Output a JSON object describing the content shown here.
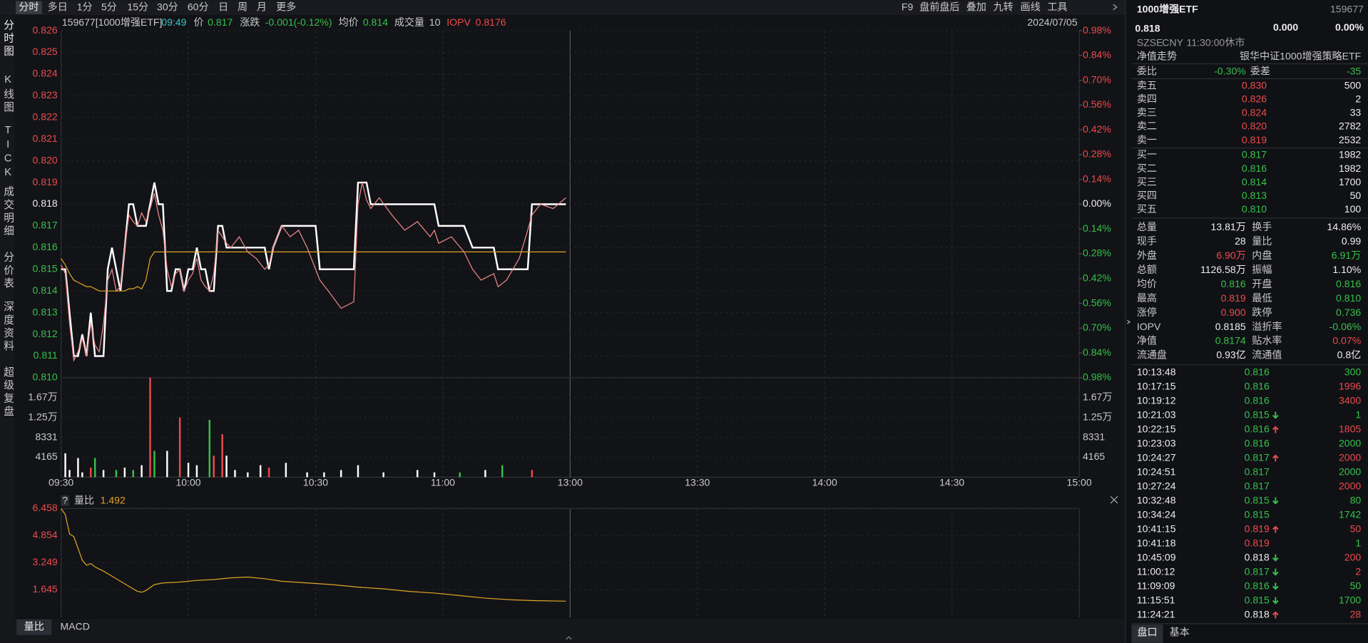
{
  "toolbar": {
    "tabs": [
      "分时",
      "多日",
      "1分",
      "5分",
      "15分",
      "30分",
      "60分",
      "日",
      "周",
      "月",
      "更多"
    ],
    "tools": [
      "F9",
      "盘前盘后",
      "叠加",
      "九转",
      "画线",
      "工具"
    ]
  },
  "sidebar": [
    "分时图",
    "K线图",
    "TICK",
    "成交明细",
    "分价表",
    "深度资料",
    "超级复盘"
  ],
  "info": {
    "code": "159677[1000增强ETF]",
    "time": "09:49",
    "price_label": "价",
    "price": 0.817,
    "change_label": "涨跌",
    "change": "-0.001(-0.12%)",
    "avg_label": "均价",
    "avg": 0.814,
    "vol_label": "成交量",
    "vol": 10,
    "iopv_label": "IOPV",
    "iopv": 0.8176,
    "date": "2024/07/05"
  },
  "chart_data": [
    {
      "type": "line",
      "x": [
        "09:30",
        "09:31",
        "09:32",
        "09:33",
        "09:34",
        "09:35",
        "09:36",
        "09:37",
        "09:38",
        "09:39",
        "09:40",
        "09:41",
        "09:42",
        "09:43",
        "09:44",
        "09:45",
        "09:46",
        "09:47",
        "09:48",
        "09:49",
        "09:50",
        "09:51",
        "09:52",
        "09:53",
        "09:54",
        "09:55",
        "09:56",
        "09:57",
        "09:58",
        "09:59",
        "10:00",
        "10:01",
        "10:02",
        "10:03",
        "10:04",
        "10:05",
        "10:06",
        "10:07",
        "10:08",
        "10:09",
        "10:10",
        "10:12",
        "10:14",
        "10:16",
        "10:18",
        "10:19",
        "10:20",
        "10:22",
        "10:24",
        "10:26",
        "10:28",
        "10:30",
        "10:31",
        "10:33",
        "10:36",
        "10:39",
        "10:40",
        "10:41",
        "10:42",
        "10:43",
        "10:45",
        "10:48",
        "10:51",
        "10:54",
        "10:57",
        "10:58",
        "10:59",
        "11:02",
        "11:05",
        "11:07",
        "11:09",
        "11:12",
        "11:13",
        "11:15",
        "11:18",
        "11:20",
        "11:21",
        "11:23",
        "11:26",
        "11:29"
      ],
      "series": [
        {
          "color": "#ffffff",
          "values": [
            0.815,
            0.815,
            0.813,
            0.811,
            0.811,
            0.812,
            0.811,
            0.813,
            0.811,
            0.811,
            0.811,
            0.815,
            0.816,
            0.815,
            0.814,
            0.816,
            0.818,
            0.818,
            0.817,
            0.817,
            0.817,
            0.818,
            0.819,
            0.818,
            0.818,
            0.814,
            0.814,
            0.815,
            0.815,
            0.814,
            0.815,
            0.815,
            0.816,
            0.815,
            0.815,
            0.814,
            0.814,
            0.817,
            0.817,
            0.816,
            0.816,
            0.816,
            0.816,
            0.816,
            0.816,
            0.815,
            0.816,
            0.817,
            0.817,
            0.817,
            0.817,
            0.817,
            0.815,
            0.815,
            0.815,
            0.815,
            0.819,
            0.819,
            0.819,
            0.818,
            0.818,
            0.818,
            0.818,
            0.818,
            0.818,
            0.818,
            0.817,
            0.817,
            0.817,
            0.816,
            0.816,
            0.816,
            0.815,
            0.815,
            0.815,
            0.815,
            0.818,
            0.818,
            0.818,
            0.818
          ]
        },
        {
          "color": "#f08a8a",
          "values": [
            0.8152,
            0.8148,
            0.8125,
            0.8108,
            0.8112,
            0.8118,
            0.811,
            0.8125,
            0.8115,
            0.8112,
            0.8125,
            0.8145,
            0.815,
            0.814,
            0.8142,
            0.816,
            0.8175,
            0.8172,
            0.817,
            0.8176,
            0.8172,
            0.8178,
            0.8185,
            0.8175,
            0.8168,
            0.815,
            0.8142,
            0.8148,
            0.815,
            0.814,
            0.8145,
            0.8148,
            0.8155,
            0.8145,
            0.8142,
            0.814,
            0.8148,
            0.8168,
            0.8165,
            0.8162,
            0.816,
            0.8165,
            0.8158,
            0.8155,
            0.815,
            0.8152,
            0.816,
            0.817,
            0.8165,
            0.8168,
            0.816,
            0.815,
            0.8145,
            0.814,
            0.8132,
            0.8135,
            0.818,
            0.819,
            0.8182,
            0.8178,
            0.8183,
            0.8175,
            0.8168,
            0.8172,
            0.8165,
            0.8168,
            0.8162,
            0.8165,
            0.8158,
            0.815,
            0.8145,
            0.8148,
            0.8142,
            0.8145,
            0.8155,
            0.8168,
            0.8175,
            0.818,
            0.8178,
            0.8183
          ]
        },
        {
          "color": "#e0a526",
          "values": [
            0.8155,
            0.8152,
            0.8148,
            0.8145,
            0.8144,
            0.8143,
            0.8142,
            0.8142,
            0.8141,
            0.814,
            0.814,
            0.814,
            0.814,
            0.814,
            0.814,
            0.814,
            0.8141,
            0.8141,
            0.8142,
            0.8141,
            0.8145,
            0.8155,
            0.8158,
            0.8158,
            0.8158,
            0.8158,
            0.8158,
            0.8158,
            0.8158,
            0.8158,
            0.8158,
            0.8158,
            0.8158,
            0.8158,
            0.8158,
            0.8158,
            0.8158,
            0.8158,
            0.8158,
            0.8158,
            0.8158,
            0.8158,
            0.8158,
            0.8158,
            0.8158,
            0.8158,
            0.8158,
            0.8158,
            0.8158,
            0.8158,
            0.8158,
            0.8158,
            0.8158,
            0.8158,
            0.8158,
            0.8158,
            0.8158,
            0.8158,
            0.8158,
            0.8158,
            0.8158,
            0.8158,
            0.8158,
            0.8158,
            0.8158,
            0.8158,
            0.8158,
            0.8158,
            0.8158,
            0.8158,
            0.8158,
            0.8158,
            0.8158,
            0.8158,
            0.8158,
            0.8158,
            0.8158,
            0.8158,
            0.8158,
            0.8158
          ]
        }
      ],
      "ylim": [
        0.81,
        0.826
      ],
      "yticks": [
        {
          "value": 0.81,
          "label": "0.810"
        },
        0.811,
        0.812,
        0.813,
        0.814,
        0.815,
        0.816,
        0.817,
        0.818,
        0.819,
        {
          "value": 0.82,
          "label": "0.820"
        },
        0.821,
        0.822,
        0.823,
        0.824,
        0.825,
        0.826
      ],
      "y2lim": [
        -0.98,
        0.98
      ],
      "y2ticks": [
        {
          "value": 0.98,
          "label": "0.98%"
        },
        {
          "value": 0.84,
          "label": "0.84%"
        },
        {
          "value": 0.7,
          "label": "0.70%"
        },
        {
          "value": 0.56,
          "label": "0.56%"
        },
        {
          "value": 0.42,
          "label": "0.42%"
        },
        {
          "value": 0.28,
          "label": "0.28%"
        },
        {
          "value": 0.14,
          "label": "0.14%"
        },
        {
          "value": 0,
          "label": "0.00%"
        },
        {
          "value": -0.14,
          "label": "0.14%"
        },
        {
          "value": -0.28,
          "label": "0.28%"
        },
        {
          "value": -0.42,
          "label": "0.42%"
        },
        {
          "value": -0.56,
          "label": "0.56%"
        },
        {
          "value": -0.7,
          "label": "0.70%"
        },
        {
          "value": -0.84,
          "label": "0.84%"
        },
        {
          "value": -0.98,
          "label": "0.98%"
        }
      ],
      "grid": true
    },
    {
      "type": "bar",
      "x": [
        "09:31",
        "09:32",
        "09:34",
        "09:35",
        "09:37",
        "09:38",
        "09:40",
        "09:43",
        "09:45",
        "09:47",
        "09:49",
        "09:51",
        "09:52",
        "09:55",
        "09:58",
        "10:00",
        "10:02",
        "10:05",
        "10:06",
        "10:08",
        "10:09",
        "10:11",
        "10:14",
        "10:17",
        "10:19",
        "10:23",
        "10:28",
        "10:32",
        "10:36",
        "10:40",
        "10:46",
        "10:54",
        "10:58",
        "11:04",
        "11:10",
        "11:14",
        "11:21"
      ],
      "values": [
        5000,
        1500,
        4000,
        1000,
        2000,
        4000,
        1500,
        1500,
        2000,
        1500,
        2500,
        20826,
        5500,
        5500,
        12500,
        3000,
        2500,
        12000,
        4500,
        9000,
        4500,
        1500,
        1000,
        2500,
        2000,
        3000,
        1000,
        1000,
        1500,
        2500,
        1000,
        1500,
        1000,
        1000,
        1500,
        2500,
        1500
      ],
      "colors": [
        "#ffffff",
        "#ffffff",
        "#ffffff",
        "#ffffff",
        "#ec4b4b",
        "#35c24a",
        "#ffffff",
        "#35c24a",
        "#ffffff",
        "#35c24a",
        "#ffffff",
        "#ec4b4b",
        "#35c24a",
        "#ffffff",
        "#ec4b4b",
        "#ffffff",
        "#ffffff",
        "#35c24a",
        "#ec4b4b",
        "#ec4b4b",
        "#ffffff",
        "#ffffff",
        "#ffffff",
        "#ffffff",
        "#ec4b4b",
        "#ffffff",
        "#ffffff",
        "#ffffff",
        "#ffffff",
        "#ffffff",
        "#ffffff",
        "#ffffff",
        "#ffffff",
        "#35c24a",
        "#ffffff",
        "#35c24a",
        "#ec4b4b"
      ],
      "ylim": [
        0,
        20826
      ],
      "yticks": [
        4165,
        8331,
        {
          "value": 12496,
          "label": "1.25万"
        },
        {
          "value": 16661,
          "label": "1.67万"
        }
      ],
      "xticks": [
        "09:30",
        "10:00",
        "10:30",
        "11:00",
        "13:00",
        "13:30",
        "14:00",
        "14:30",
        "15:00"
      ]
    },
    {
      "type": "line",
      "x": [
        "09:30",
        "09:31",
        "09:32",
        "09:33",
        "09:34",
        "09:35",
        "09:36",
        "09:37",
        "09:38",
        "09:40",
        "09:42",
        "09:44",
        "09:46",
        "09:48",
        "09:49",
        "09:50",
        "09:52",
        "09:54",
        "09:58",
        "10:02",
        "10:06",
        "10:10",
        "10:14",
        "10:18",
        "10:22",
        "10:28",
        "10:34",
        "10:40",
        "10:46",
        "10:52",
        "10:58",
        "11:04",
        "11:10",
        "11:16",
        "11:22",
        "11:29"
      ],
      "series": [
        {
          "color": "#e0a526",
          "values": [
            6.458,
            6.1,
            4.95,
            4.8,
            4.1,
            3.4,
            3.1,
            3.2,
            3.0,
            2.75,
            2.45,
            2.15,
            1.85,
            1.55,
            1.5,
            1.6,
            1.95,
            2.05,
            2.1,
            2.2,
            2.25,
            2.35,
            2.4,
            2.3,
            2.15,
            2.05,
            1.95,
            1.8,
            1.7,
            1.55,
            1.45,
            1.3,
            1.15,
            1.05,
            1.0,
            0.97
          ]
        }
      ],
      "ylim": [
        0,
        6.458
      ],
      "yticks": [
        1.645,
        3.249,
        4.854,
        6.458
      ]
    }
  ],
  "sub_header": {
    "help": "?",
    "label": "量比",
    "value": 1.492
  },
  "bottom_tabs": [
    "量比",
    "MACD"
  ],
  "panel": {
    "name": "1000增强ETF",
    "code": "159677",
    "price": 0.818,
    "change": "0.000",
    "pct": "0.00%",
    "meta": [
      "SZSE",
      "CNY",
      "11:30:00",
      "休市"
    ],
    "nav_label": "净值走势",
    "fund_name": "银华中证1000增强策略ETF",
    "weibi": [
      {
        "label": "委比",
        "value": "-0.30%",
        "color": "green"
      },
      {
        "label": "委差",
        "value": "-35",
        "color": "green"
      }
    ],
    "asks": [
      [
        "卖五",
        "0.830",
        "500"
      ],
      [
        "卖四",
        "0.826",
        "2"
      ],
      [
        "卖三",
        "0.824",
        "33"
      ],
      [
        "卖二",
        "0.820",
        "2782"
      ],
      [
        "卖一",
        "0.819",
        "2532"
      ]
    ],
    "ask_color": "red",
    "bids": [
      [
        "买一",
        "0.817",
        "1982"
      ],
      [
        "买二",
        "0.816",
        "1982"
      ],
      [
        "买三",
        "0.814",
        "1700"
      ],
      [
        "买四",
        "0.813",
        "50"
      ],
      [
        "买五",
        "0.810",
        "100"
      ]
    ],
    "bid_color": "green",
    "stats": [
      {
        "label": "总量",
        "value": "13.81万",
        "color": "white"
      },
      {
        "label": "换手",
        "value": "14.86%",
        "color": "white"
      },
      {
        "label": "现手",
        "value": "28",
        "color": "white"
      },
      {
        "label": "量比",
        "value": "0.99",
        "color": "white"
      },
      {
        "label": "外盘",
        "value": "6.90万",
        "color": "red"
      },
      {
        "label": "内盘",
        "value": "6.91万",
        "color": "green"
      },
      {
        "label": "总额",
        "value": "1126.58万",
        "color": "white"
      },
      {
        "label": "振幅",
        "value": "1.10%",
        "color": "white"
      },
      {
        "label": "均价",
        "value": "0.816",
        "color": "green"
      },
      {
        "label": "开盘",
        "value": "0.816",
        "color": "green"
      },
      {
        "label": "最高",
        "value": "0.819",
        "color": "red"
      },
      {
        "label": "最低",
        "value": "0.810",
        "color": "green"
      },
      {
        "label": "涨停",
        "value": "0.900",
        "color": "red"
      },
      {
        "label": "跌停",
        "value": "0.736",
        "color": "green"
      },
      {
        "label": "IOPV",
        "value": "0.8185",
        "color": "white"
      },
      {
        "label": "溢折率",
        "value": "-0.06%",
        "color": "green"
      },
      {
        "label": "净值",
        "value": "0.8174",
        "color": "green"
      },
      {
        "label": "贴水率",
        "value": "0.07%",
        "color": "red"
      },
      {
        "label": "流通盘",
        "value": "0.93亿",
        "color": "white"
      },
      {
        "label": "流通值",
        "value": "0.8亿",
        "color": "white"
      }
    ],
    "trades": [
      {
        "time": "10:13:48",
        "price": "0.816",
        "vol": "300",
        "price_color": "green",
        "vol_color": "green",
        "arrow": null
      },
      {
        "time": "10:17:15",
        "price": "0.816",
        "vol": "1996",
        "price_color": "green",
        "vol_color": "red",
        "arrow": null
      },
      {
        "time": "10:19:12",
        "price": "0.816",
        "vol": "3400",
        "price_color": "green",
        "vol_color": "red",
        "arrow": null
      },
      {
        "time": "10:21:03",
        "price": "0.815",
        "vol": "1",
        "price_color": "green",
        "vol_color": "green",
        "arrow": "down"
      },
      {
        "time": "10:22:15",
        "price": "0.816",
        "vol": "1805",
        "price_color": "green",
        "vol_color": "red",
        "arrow": "up"
      },
      {
        "time": "10:23:03",
        "price": "0.816",
        "vol": "2000",
        "price_color": "green",
        "vol_color": "green",
        "arrow": null
      },
      {
        "time": "10:24:27",
        "price": "0.817",
        "vol": "2000",
        "price_color": "green",
        "vol_color": "red",
        "arrow": "up"
      },
      {
        "time": "10:24:51",
        "price": "0.817",
        "vol": "2000",
        "price_color": "green",
        "vol_color": "green",
        "arrow": null
      },
      {
        "time": "10:27:24",
        "price": "0.817",
        "vol": "2000",
        "price_color": "green",
        "vol_color": "red",
        "arrow": null
      },
      {
        "time": "10:32:48",
        "price": "0.815",
        "vol": "80",
        "price_color": "green",
        "vol_color": "green",
        "arrow": "down"
      },
      {
        "time": "10:34:24",
        "price": "0.815",
        "vol": "1742",
        "price_color": "green",
        "vol_color": "green",
        "arrow": null
      },
      {
        "time": "10:41:15",
        "price": "0.819",
        "vol": "50",
        "price_color": "red",
        "vol_color": "red",
        "arrow": "up"
      },
      {
        "time": "10:41:18",
        "price": "0.819",
        "vol": "1",
        "price_color": "red",
        "vol_color": "green",
        "arrow": null
      },
      {
        "time": "10:45:09",
        "price": "0.818",
        "vol": "200",
        "price_color": "white",
        "vol_color": "red",
        "arrow": "down"
      },
      {
        "time": "11:00:12",
        "price": "0.817",
        "vol": "2",
        "price_color": "green",
        "vol_color": "red",
        "arrow": "down"
      },
      {
        "time": "11:09:09",
        "price": "0.816",
        "vol": "50",
        "price_color": "green",
        "vol_color": "green",
        "arrow": "down"
      },
      {
        "time": "11:15:51",
        "price": "0.815",
        "vol": "1700",
        "price_color": "green",
        "vol_color": "green",
        "arrow": "down"
      },
      {
        "time": "11:24:21",
        "price": "0.818",
        "vol": "28",
        "price_color": "white",
        "vol_color": "red",
        "arrow": "up"
      }
    ],
    "tabs": [
      "盘口",
      "基本"
    ]
  }
}
